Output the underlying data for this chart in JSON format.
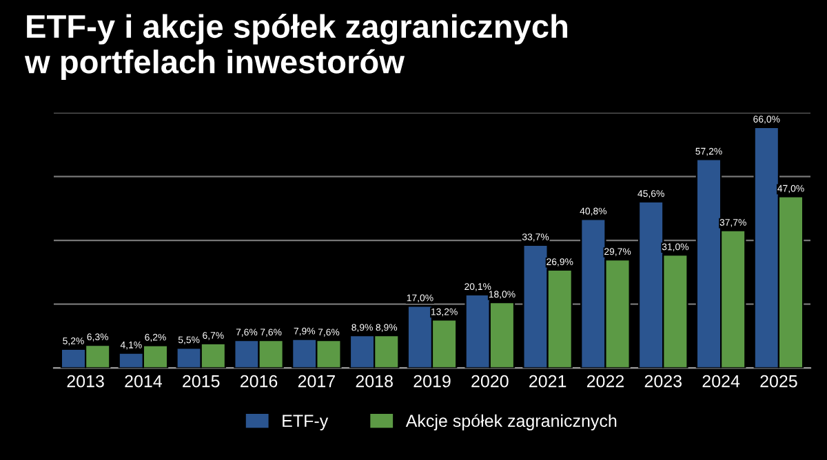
{
  "chart_data": {
    "type": "bar",
    "title": "ETF-y i akcje spółek zagranicznych\nw portfelach inwestorów",
    "categories": [
      "2013",
      "2014",
      "2015",
      "2016",
      "2017",
      "2018",
      "2019",
      "2020",
      "2021",
      "2022",
      "2023",
      "2024",
      "2025"
    ],
    "series": [
      {
        "name": "ETF-y",
        "color": "#2b5590",
        "values": [
          5.2,
          4.1,
          5.5,
          7.6,
          7.9,
          8.9,
          17.0,
          20.1,
          33.7,
          40.8,
          45.6,
          57.2,
          66.0
        ],
        "value_labels": [
          "5,2%",
          "4,1%",
          "5,5%",
          "7,6%",
          "7,9%",
          "8,9%",
          "17,0%",
          "20,1%",
          "33,7%",
          "40,8%",
          "45,6%",
          "57,2%",
          "66,0%"
        ]
      },
      {
        "name": "Akcje spółek zagranicznych",
        "color": "#5c9a45",
        "values": [
          6.3,
          6.2,
          6.7,
          7.6,
          7.6,
          8.9,
          13.2,
          18.0,
          26.9,
          29.7,
          31.0,
          37.7,
          47.0
        ],
        "value_labels": [
          "6,3%",
          "6,2%",
          "6,7%",
          "7,6%",
          "7,6%",
          "8,9%",
          "13,2%",
          "18,0%",
          "26,9%",
          "29,7%",
          "31,0%",
          "37,7%",
          "47,0%"
        ]
      }
    ],
    "ylim": [
      0,
      70
    ],
    "yticks": [
      {
        "value": 0,
        "label": null
      },
      {
        "value": 17.5,
        "label": null
      },
      {
        "value": 35,
        "label": null
      },
      {
        "value": 52.5,
        "label": null
      },
      {
        "value": 70,
        "label": null
      }
    ],
    "grid": "y",
    "legend": "bottom",
    "tick_labels": "x"
  }
}
